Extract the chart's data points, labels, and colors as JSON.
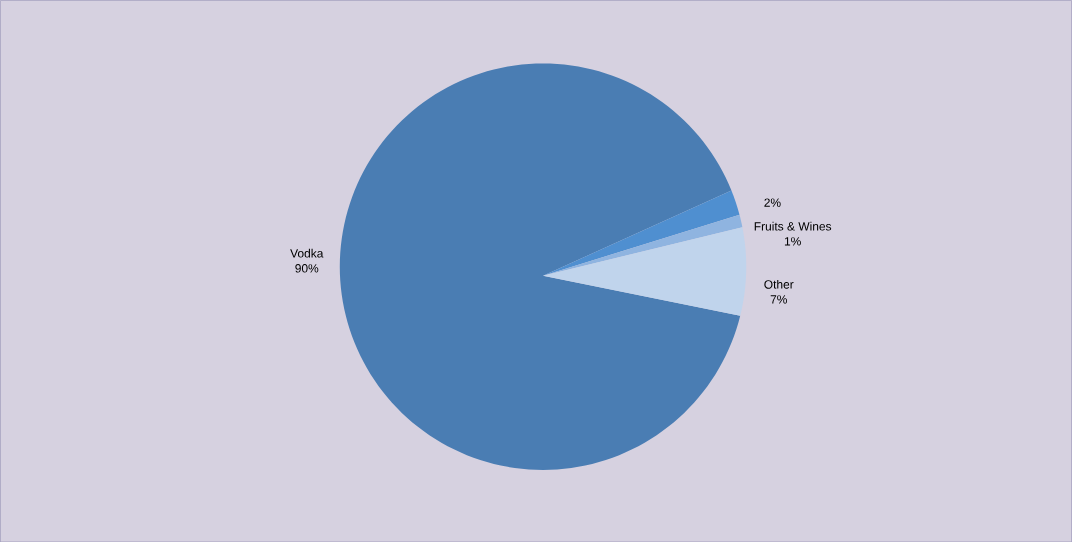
{
  "chart_data": {
    "type": "pie",
    "categories": [
      "Vodka",
      null,
      "Fruits & Wines",
      "Other"
    ],
    "values": [
      90,
      2,
      1,
      7
    ],
    "value_labels": [
      "90%",
      "2%",
      "1%",
      "7%"
    ],
    "colors": [
      "#4a7db3",
      "#4f8fd0",
      "#8fb4e0",
      "#c0d4ec"
    ]
  }
}
